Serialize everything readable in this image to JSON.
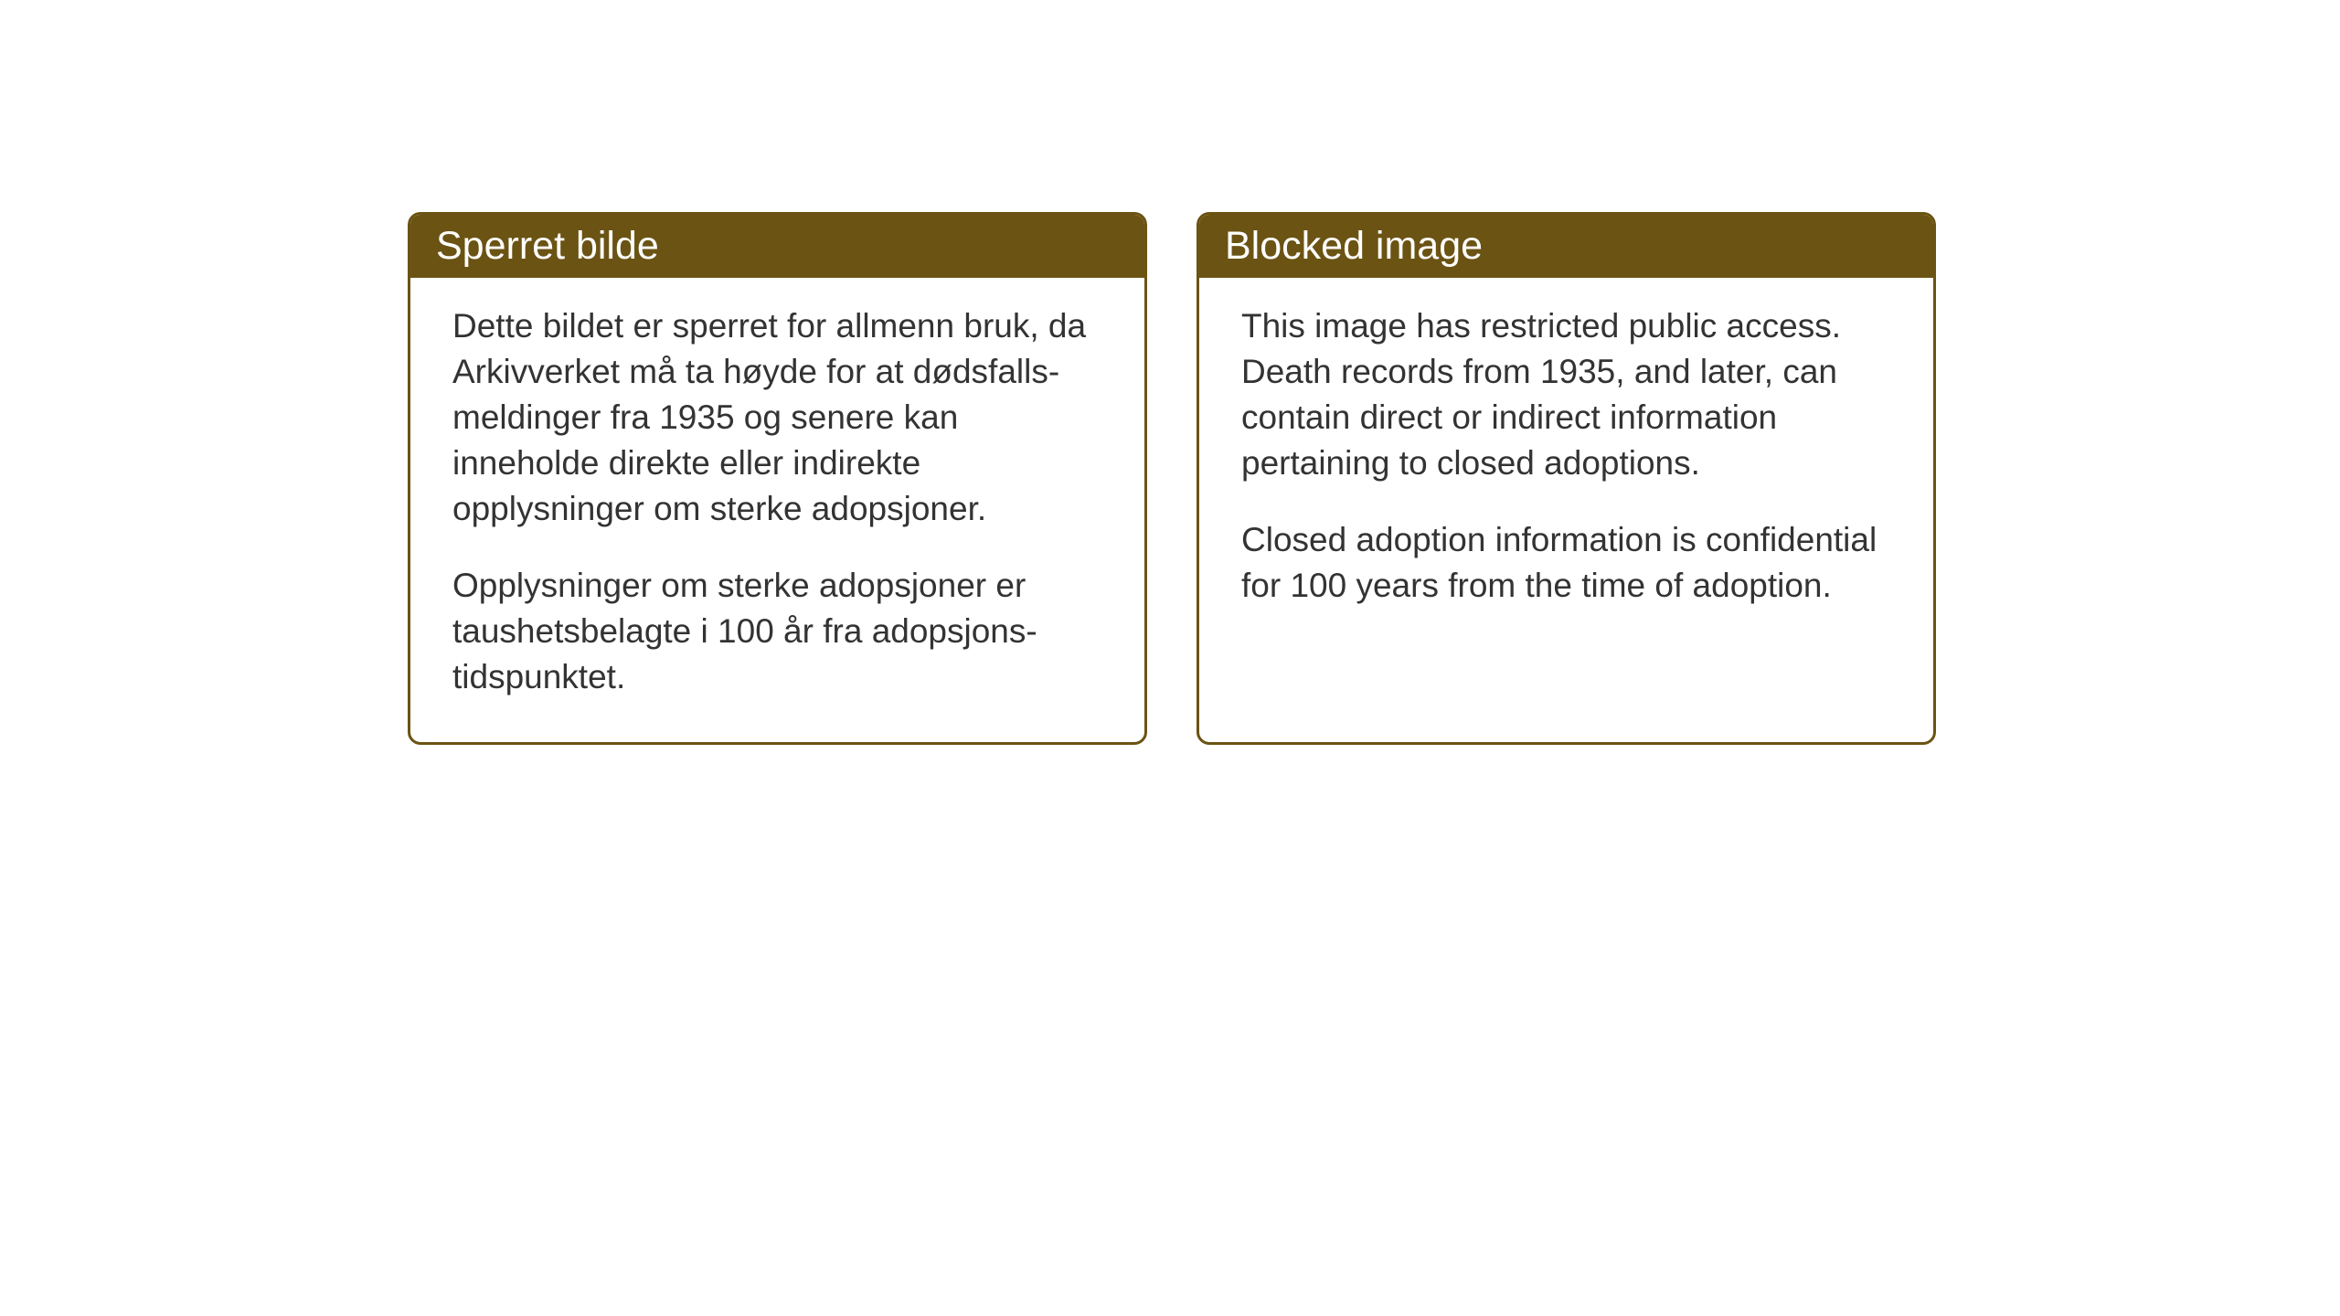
{
  "cards": [
    {
      "title": "Sperret bilde",
      "paragraph1": "Dette bildet er sperret for allmenn bruk, da Arkivverket må ta høyde for at dødsfalls-meldinger fra 1935 og senere kan inneholde direkte eller indirekte opplysninger om sterke adopsjoner.",
      "paragraph2": "Opplysninger om sterke adopsjoner er taushetsbelagte i 100 år fra adopsjons-tidspunktet."
    },
    {
      "title": "Blocked image",
      "paragraph1": "This image has restricted public access. Death records from 1935, and later, can contain direct or indirect information pertaining to closed adoptions.",
      "paragraph2": "Closed adoption information is confidential for 100 years from the time of adoption."
    }
  ],
  "styling": {
    "header_background": "#6b5313",
    "header_text_color": "#ffffff",
    "border_color": "#6b5313",
    "body_text_color": "#333333",
    "background_color": "#ffffff",
    "border_radius": 14,
    "title_fontsize": 43,
    "body_fontsize": 37
  }
}
